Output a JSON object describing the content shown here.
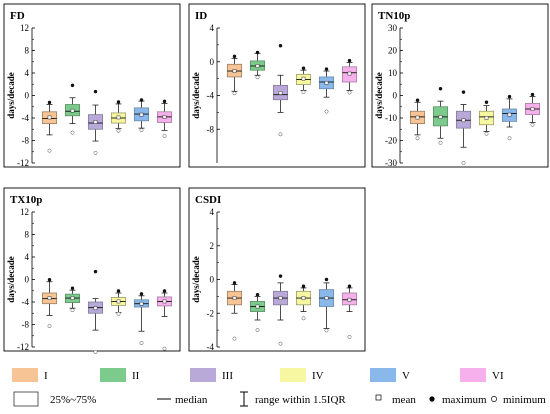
{
  "chart_data": [
    {
      "type": "box",
      "title": "FD",
      "ylabel": "days/decade",
      "ylim": [
        -12,
        12
      ],
      "yticks": [
        -12,
        -8,
        -4,
        0,
        4,
        8,
        12
      ],
      "categories": [
        "I",
        "II",
        "III",
        "IV",
        "V",
        "VI"
      ],
      "boxes": [
        {
          "q1": -5.0,
          "median": -4.1,
          "q3": -2.9,
          "whisker_low": -7.0,
          "whisker_high": -1.6,
          "mean": -3.9,
          "maximum": -1.6,
          "minimum": -9.8
        },
        {
          "q1": -3.6,
          "median": -2.8,
          "q3": -1.6,
          "whisker_low": -5.0,
          "whisker_high": -0.4,
          "mean": -2.7,
          "maximum": 1.8,
          "minimum": -6.6
        },
        {
          "q1": -6.0,
          "median": -4.9,
          "q3": -3.4,
          "whisker_low": -8.1,
          "whisker_high": -1.7,
          "mean": -4.7,
          "maximum": 0.7,
          "minimum": -10.2
        },
        {
          "q1": -4.9,
          "median": -4.0,
          "q3": -3.1,
          "whisker_low": -5.9,
          "whisker_high": -1.5,
          "mean": -3.9,
          "maximum": -1.5,
          "minimum": -5.9
        },
        {
          "q1": -4.5,
          "median": -3.3,
          "q3": -2.2,
          "whisker_low": -5.8,
          "whisker_high": -1.0,
          "mean": -3.4,
          "maximum": -0.8,
          "minimum": -5.8
        },
        {
          "q1": -4.8,
          "median": -3.8,
          "q3": -2.9,
          "whisker_low": -6.2,
          "whisker_high": -1.4,
          "mean": -3.8,
          "maximum": -1.4,
          "minimum": -7.2
        }
      ]
    },
    {
      "type": "box",
      "title": "ID",
      "ylabel": "days/decade",
      "ylim": [
        -12,
        4
      ],
      "yticks": [
        -8,
        -4,
        0,
        4
      ],
      "categories": [
        "I",
        "II",
        "III",
        "IV",
        "V",
        "VI"
      ],
      "boxes": [
        {
          "q1": -1.8,
          "median": -1.1,
          "q3": -0.3,
          "whisker_low": -3.5,
          "whisker_high": 0.4,
          "mean": -1.1,
          "maximum": 0.4,
          "minimum": -3.5
        },
        {
          "q1": -1.0,
          "median": -0.5,
          "q3": 0.1,
          "whisker_low": -1.6,
          "whisker_high": 1.0,
          "mean": -0.5,
          "maximum": 1.1,
          "minimum": -1.6
        },
        {
          "q1": -4.5,
          "median": -3.9,
          "q3": -2.8,
          "whisker_low": -6.0,
          "whisker_high": -1.6,
          "mean": -3.7,
          "maximum": 1.9,
          "minimum": -8.6
        },
        {
          "q1": -2.7,
          "median": -2.1,
          "q3": -1.5,
          "whisker_low": -3.4,
          "whisker_high": -1.0,
          "mean": -2.0,
          "maximum": -1.0,
          "minimum": -3.6
        },
        {
          "q1": -3.2,
          "median": -2.4,
          "q3": -1.8,
          "whisker_low": -4.2,
          "whisker_high": -1.1,
          "mean": -2.5,
          "maximum": -1.1,
          "minimum": -5.9
        },
        {
          "q1": -2.4,
          "median": -1.3,
          "q3": -0.6,
          "whisker_low": -3.4,
          "whisker_high": -0.1,
          "mean": -1.4,
          "maximum": -0.1,
          "minimum": -3.4
        }
      ]
    },
    {
      "type": "box",
      "title": "TN10p",
      "ylabel": "days/decade",
      "ylim": [
        -30,
        30
      ],
      "yticks": [
        -30,
        -20,
        -10,
        0,
        10,
        20,
        30
      ],
      "categories": [
        "I",
        "II",
        "III",
        "IV",
        "V",
        "VI"
      ],
      "boxes": [
        {
          "q1": -12.5,
          "median": -9.5,
          "q3": -7.0,
          "whisker_low": -17.5,
          "whisker_high": -3.0,
          "mean": -9.8,
          "maximum": -3.0,
          "minimum": -19.0
        },
        {
          "q1": -13.5,
          "median": -9.5,
          "q3": -5.0,
          "whisker_low": -19.0,
          "whisker_high": -2.5,
          "mean": -9.5,
          "maximum": 3.0,
          "minimum": -21.0
        },
        {
          "q1": -14.5,
          "median": -11.0,
          "q3": -7.0,
          "whisker_low": -23.0,
          "whisker_high": -4.0,
          "mean": -11.0,
          "maximum": 1.5,
          "minimum": -30.0
        },
        {
          "q1": -13.0,
          "median": -9.5,
          "q3": -7.0,
          "whisker_low": -16.0,
          "whisker_high": -4.5,
          "mean": -10.0,
          "maximum": -3.0,
          "minimum": -17.0
        },
        {
          "q1": -11.5,
          "median": -8.0,
          "q3": -6.0,
          "whisker_low": -14.0,
          "whisker_high": -1.5,
          "mean": -8.5,
          "maximum": -0.5,
          "minimum": -19.0
        },
        {
          "q1": -8.5,
          "median": -6.0,
          "q3": -3.5,
          "whisker_low": -12.0,
          "whisker_high": -0.5,
          "mean": -6.0,
          "maximum": -0.5,
          "minimum": -13.0
        }
      ]
    },
    {
      "type": "box",
      "title": "TX10p",
      "ylabel": "days/decade",
      "ylim": [
        -12,
        12
      ],
      "yticks": [
        -12,
        -8,
        -4,
        0,
        4,
        8,
        12
      ],
      "categories": [
        "I",
        "II",
        "III",
        "IV",
        "V",
        "VI"
      ],
      "boxes": [
        {
          "q1": -4.3,
          "median": -3.4,
          "q3": -2.4,
          "whisker_low": -6.4,
          "whisker_high": -0.4,
          "mean": -3.3,
          "maximum": -0.4,
          "minimum": -8.3
        },
        {
          "q1": -4.1,
          "median": -3.3,
          "q3": -2.6,
          "whisker_low": -5.1,
          "whisker_high": -1.9,
          "mean": -3.3,
          "maximum": -1.9,
          "minimum": -5.1
        },
        {
          "q1": -6.0,
          "median": -5.0,
          "q3": -4.0,
          "whisker_low": -9.0,
          "whisker_high": -3.4,
          "mean": -5.1,
          "maximum": 1.4,
          "minimum": -12.9
        },
        {
          "q1": -4.6,
          "median": -3.9,
          "q3": -3.2,
          "whisker_low": -5.9,
          "whisker_high": -2.4,
          "mean": -3.9,
          "maximum": -2.4,
          "minimum": -6.1
        },
        {
          "q1": -4.9,
          "median": -4.3,
          "q3": -3.6,
          "whisker_low": -9.2,
          "whisker_high": -2.9,
          "mean": -4.3,
          "maximum": -2.9,
          "minimum": -11.3
        },
        {
          "q1": -4.7,
          "median": -3.9,
          "q3": -3.1,
          "whisker_low": -6.6,
          "whisker_high": -2.4,
          "mean": -3.9,
          "maximum": -2.4,
          "minimum": -12.3
        }
      ]
    },
    {
      "type": "box",
      "title": "CSDI",
      "ylabel": "days/decade",
      "ylim": [
        -4,
        4
      ],
      "yticks": [
        -4,
        -2,
        0,
        2,
        4
      ],
      "categories": [
        "I",
        "II",
        "III",
        "IV",
        "V",
        "VI"
      ],
      "boxes": [
        {
          "q1": -1.5,
          "median": -1.1,
          "q3": -0.7,
          "whisker_low": -2.0,
          "whisker_high": -0.3,
          "mean": -1.1,
          "maximum": -0.2,
          "minimum": -3.5
        },
        {
          "q1": -1.9,
          "median": -1.6,
          "q3": -1.3,
          "whisker_low": -2.4,
          "whisker_high": -1.0,
          "mean": -1.6,
          "maximum": -0.9,
          "minimum": -3.0
        },
        {
          "q1": -1.5,
          "median": -1.1,
          "q3": -0.7,
          "whisker_low": -2.4,
          "whisker_high": -0.2,
          "mean": -1.1,
          "maximum": 0.2,
          "minimum": -3.8
        },
        {
          "q1": -1.5,
          "median": -1.1,
          "q3": -0.7,
          "whisker_low": -1.9,
          "whisker_high": -0.5,
          "mean": -1.1,
          "maximum": -0.4,
          "minimum": -2.3
        },
        {
          "q1": -1.6,
          "median": -1.1,
          "q3": -0.6,
          "whisker_low": -2.9,
          "whisker_high": -0.2,
          "mean": -1.1,
          "maximum": 0.0,
          "minimum": -2.9
        },
        {
          "q1": -1.5,
          "median": -1.2,
          "q3": -0.8,
          "whisker_low": -1.9,
          "whisker_high": -0.5,
          "mean": -1.2,
          "maximum": -0.4,
          "minimum": -3.4
        }
      ]
    }
  ],
  "colors": {
    "fills": [
      "#f7c496",
      "#7ccb8c",
      "#b9a9d9",
      "#f6f7a0",
      "#8ab8ea",
      "#f6b0ec"
    ],
    "strokes": [
      "#9c7e62",
      "#5e8f67",
      "#837a9a",
      "#9a9b6a",
      "#6a89a8",
      "#a27f9c"
    ]
  },
  "legend": {
    "categories": [
      "I",
      "II",
      "III",
      "IV",
      "V",
      "VI"
    ],
    "range_label": "25%~75%",
    "median_label": "median",
    "iqr_label": "range within 1.5IQR",
    "mean_label": "mean",
    "maximum_label": "maximum",
    "minimum_label": "minimum"
  }
}
